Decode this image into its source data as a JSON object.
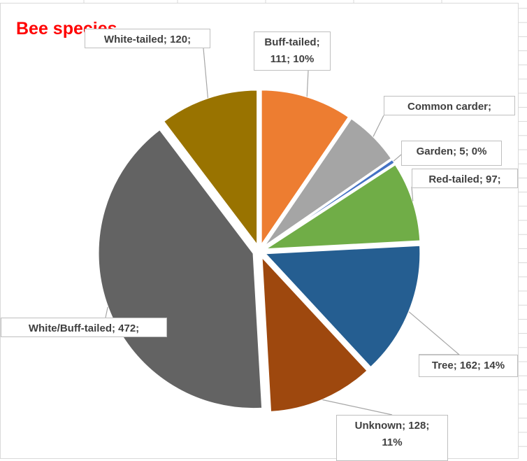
{
  "chart_data": {
    "type": "pie",
    "title": "Bee species",
    "categories": [
      "Buff-tailed",
      "Common carder",
      "Garden",
      "Red-tailed",
      "Tree",
      "Unknown",
      "White/Buff-tailed",
      "White-tailed"
    ],
    "values": [
      111,
      68,
      5,
      97,
      162,
      128,
      472,
      120
    ],
    "data_labels": [
      [
        "Buff-tailed;",
        "111; 10%"
      ],
      [
        "Common carder;"
      ],
      [
        "Garden; 5; 0%"
      ],
      [
        "Red-tailed; 97;"
      ],
      [
        "Tree; 162; 14%"
      ],
      [
        "Unknown; 128;",
        "11%"
      ],
      [
        "White/Buff-tailed; 472;"
      ],
      [
        "White-tailed; 120;"
      ]
    ],
    "colors": [
      "#ed7d31",
      "#a5a5a5",
      "#4472c4",
      "#70ad47",
      "#255e91",
      "#9e480e",
      "#636363",
      "#997300"
    ],
    "exploded": true,
    "legend": "none"
  }
}
